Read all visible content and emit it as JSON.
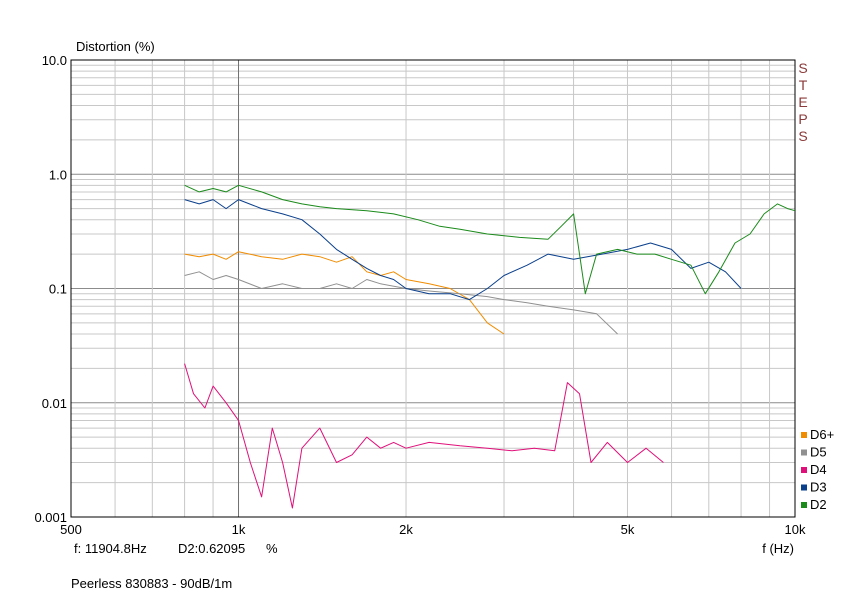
{
  "readout": {
    "freq": "f: 11904.8Hz",
    "value": "D2:0.62095",
    "unit": "%"
  },
  "footer": "Peerless 830883 - 90dB/1m",
  "watermark": [
    "S",
    "T",
    "E",
    "P",
    "S"
  ],
  "chart_data": {
    "type": "line",
    "ylabel": "Distortion (%)",
    "xlabel": "f (Hz)",
    "xscale": "log",
    "yscale": "log",
    "xlim": [
      500,
      10000
    ],
    "ylim": [
      0.001,
      10
    ],
    "xticks": [
      {
        "v": 500,
        "label": "500"
      },
      {
        "v": 1000,
        "label": "1k"
      },
      {
        "v": 2000,
        "label": "2k"
      },
      {
        "v": 5000,
        "label": "5k"
      },
      {
        "v": 10000,
        "label": "10k"
      }
    ],
    "yticks": [
      {
        "v": 10,
        "label": "10.0"
      },
      {
        "v": 1,
        "label": "1.0"
      },
      {
        "v": 0.1,
        "label": "0.1"
      },
      {
        "v": 0.01,
        "label": "0.01"
      },
      {
        "v": 0.001,
        "label": "0.001"
      }
    ],
    "grid": true,
    "legend_position": "bottom-right",
    "series": [
      {
        "name": "D6+",
        "color": "#f08c00",
        "points": [
          [
            800,
            0.2
          ],
          [
            850,
            0.19
          ],
          [
            900,
            0.2
          ],
          [
            950,
            0.18
          ],
          [
            1000,
            0.21
          ],
          [
            1100,
            0.19
          ],
          [
            1200,
            0.18
          ],
          [
            1300,
            0.2
          ],
          [
            1400,
            0.19
          ],
          [
            1500,
            0.17
          ],
          [
            1600,
            0.19
          ],
          [
            1700,
            0.14
          ],
          [
            1800,
            0.13
          ],
          [
            1900,
            0.14
          ],
          [
            2000,
            0.12
          ],
          [
            2200,
            0.11
          ],
          [
            2400,
            0.1
          ],
          [
            2600,
            0.08
          ],
          [
            2800,
            0.05
          ],
          [
            3000,
            0.04
          ]
        ]
      },
      {
        "name": "D5",
        "color": "#909090",
        "points": [
          [
            800,
            0.13
          ],
          [
            850,
            0.14
          ],
          [
            900,
            0.12
          ],
          [
            950,
            0.13
          ],
          [
            1000,
            0.12
          ],
          [
            1100,
            0.1
          ],
          [
            1200,
            0.11
          ],
          [
            1300,
            0.1
          ],
          [
            1400,
            0.1
          ],
          [
            1500,
            0.11
          ],
          [
            1600,
            0.1
          ],
          [
            1700,
            0.12
          ],
          [
            1800,
            0.11
          ],
          [
            2000,
            0.1
          ],
          [
            2200,
            0.095
          ],
          [
            2500,
            0.09
          ],
          [
            2800,
            0.085
          ],
          [
            3000,
            0.08
          ],
          [
            3300,
            0.075
          ],
          [
            3600,
            0.07
          ],
          [
            4000,
            0.065
          ],
          [
            4400,
            0.06
          ],
          [
            4800,
            0.04
          ]
        ]
      },
      {
        "name": "D4",
        "color": "#e0107a",
        "points": [
          [
            800,
            0.022
          ],
          [
            830,
            0.012
          ],
          [
            870,
            0.009
          ],
          [
            900,
            0.014
          ],
          [
            950,
            0.01
          ],
          [
            1000,
            0.007
          ],
          [
            1050,
            0.003
          ],
          [
            1100,
            0.0015
          ],
          [
            1150,
            0.006
          ],
          [
            1200,
            0.003
          ],
          [
            1250,
            0.0012
          ],
          [
            1300,
            0.004
          ],
          [
            1400,
            0.006
          ],
          [
            1500,
            0.003
          ],
          [
            1600,
            0.0035
          ],
          [
            1700,
            0.005
          ],
          [
            1800,
            0.004
          ],
          [
            1900,
            0.0045
          ],
          [
            2000,
            0.004
          ],
          [
            2200,
            0.0045
          ],
          [
            2500,
            0.0042
          ],
          [
            2800,
            0.004
          ],
          [
            3100,
            0.0038
          ],
          [
            3400,
            0.004
          ],
          [
            3700,
            0.0038
          ],
          [
            3900,
            0.015
          ],
          [
            4100,
            0.012
          ],
          [
            4300,
            0.003
          ],
          [
            4600,
            0.0045
          ],
          [
            5000,
            0.003
          ],
          [
            5400,
            0.004
          ],
          [
            5800,
            0.003
          ]
        ]
      },
      {
        "name": "D3",
        "color": "#0a3f8c",
        "points": [
          [
            800,
            0.6
          ],
          [
            850,
            0.55
          ],
          [
            900,
            0.6
          ],
          [
            950,
            0.5
          ],
          [
            1000,
            0.6
          ],
          [
            1100,
            0.5
          ],
          [
            1200,
            0.45
          ],
          [
            1300,
            0.4
          ],
          [
            1400,
            0.3
          ],
          [
            1500,
            0.22
          ],
          [
            1600,
            0.18
          ],
          [
            1700,
            0.15
          ],
          [
            1800,
            0.13
          ],
          [
            1900,
            0.12
          ],
          [
            2000,
            0.1
          ],
          [
            2200,
            0.09
          ],
          [
            2400,
            0.09
          ],
          [
            2600,
            0.08
          ],
          [
            2800,
            0.1
          ],
          [
            3000,
            0.13
          ],
          [
            3300,
            0.16
          ],
          [
            3600,
            0.2
          ],
          [
            4000,
            0.18
          ],
          [
            4500,
            0.2
          ],
          [
            5000,
            0.22
          ],
          [
            5500,
            0.25
          ],
          [
            6000,
            0.22
          ],
          [
            6500,
            0.15
          ],
          [
            7000,
            0.17
          ],
          [
            7500,
            0.14
          ],
          [
            8000,
            0.1
          ]
        ]
      },
      {
        "name": "D2",
        "color": "#1a8a1a",
        "points": [
          [
            800,
            0.8
          ],
          [
            850,
            0.7
          ],
          [
            900,
            0.75
          ],
          [
            950,
            0.7
          ],
          [
            1000,
            0.8
          ],
          [
            1100,
            0.7
          ],
          [
            1200,
            0.6
          ],
          [
            1300,
            0.55
          ],
          [
            1400,
            0.52
          ],
          [
            1500,
            0.5
          ],
          [
            1700,
            0.48
          ],
          [
            1900,
            0.45
          ],
          [
            2100,
            0.4
          ],
          [
            2300,
            0.35
          ],
          [
            2500,
            0.33
          ],
          [
            2800,
            0.3
          ],
          [
            3200,
            0.28
          ],
          [
            3600,
            0.27
          ],
          [
            3800,
            0.35
          ],
          [
            4000,
            0.45
          ],
          [
            4100,
            0.2
          ],
          [
            4200,
            0.09
          ],
          [
            4400,
            0.2
          ],
          [
            4800,
            0.22
          ],
          [
            5200,
            0.2
          ],
          [
            5600,
            0.2
          ],
          [
            6000,
            0.18
          ],
          [
            6500,
            0.16
          ],
          [
            6900,
            0.09
          ],
          [
            7300,
            0.14
          ],
          [
            7800,
            0.25
          ],
          [
            8300,
            0.3
          ],
          [
            8800,
            0.45
          ],
          [
            9300,
            0.55
          ],
          [
            9700,
            0.5
          ],
          [
            10000,
            0.48
          ]
        ]
      }
    ]
  }
}
